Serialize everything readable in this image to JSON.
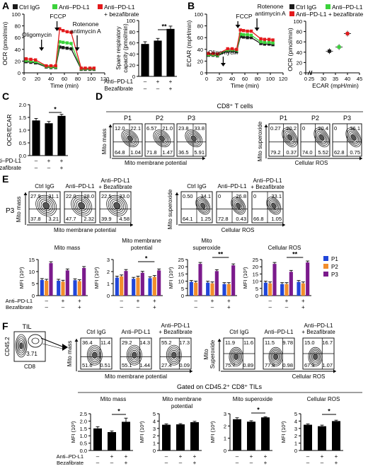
{
  "colors": {
    "black": "#1a1a1a",
    "green": "#3bd23b",
    "red": "#e31a1c",
    "blue": "#2146d9",
    "orange": "#f28e2c",
    "purple": "#7b1a8c",
    "gray_bar": "#8c8c8c"
  },
  "panels": {
    "A": "A",
    "B": "B",
    "C": "C",
    "D": "D",
    "E": "E",
    "F": "F"
  },
  "legend_AB": [
    "Ctrl IgG",
    "Anti–PD-L1",
    "Anti–PD-L1 + bezafibrate"
  ],
  "treat_short": [
    "Ctrl IgG",
    "Anti–PD-L1",
    "Anti–PD-L1 + Bezafibrate"
  ],
  "treat_labels": {
    "anti": "Anti–PD-L1",
    "beza": "Bezafibrate",
    "signs_anti": [
      "–",
      "+",
      "+"
    ],
    "signs_beza": [
      "–",
      "–",
      "+"
    ]
  },
  "sig": {
    "two": "**",
    "one": "*"
  },
  "A": {
    "ylabel": "OCR (pmol/min)",
    "xlabel": "Time (min)",
    "yticks": [
      "0",
      "20",
      "40",
      "60",
      "80",
      "100"
    ],
    "xticks": [
      "0",
      "20",
      "40",
      "60",
      "80",
      "100",
      "120"
    ],
    "ann": [
      "Oligomycin",
      "FCCP",
      "Rotenone",
      "antimycin A"
    ]
  },
  "A2": {
    "ylabel": [
      "Spare respiratory",
      "capacity (pmol/min)"
    ],
    "yticks": [
      "0",
      "20",
      "40",
      "60",
      "80",
      "100"
    ]
  },
  "B": {
    "ylabel": "ECAR (mpH/min)",
    "xlabel": "Time (min)",
    "yticks": [
      "0",
      "20",
      "40",
      "60",
      "80",
      "100"
    ],
    "xticks": [
      "0",
      "20",
      "40",
      "60",
      "80",
      "100",
      "120"
    ],
    "ann": [
      "FCCP",
      "Rotenone",
      "antimycin A",
      "Oligomycin"
    ]
  },
  "B2": {
    "ylabel": "OCR (pmol/min)",
    "xlabel": "ECAR (mpH/min)",
    "yticks": [
      "0",
      "20",
      "40",
      "60",
      "80",
      "100"
    ],
    "xticks": [
      "0",
      "25",
      "30",
      "35",
      "40",
      "45"
    ]
  },
  "C": {
    "ylabel": "OCR/ECAR",
    "yticks": [
      "0.0",
      "0.5",
      "1.0",
      "1.5",
      "2.0"
    ]
  },
  "D": {
    "title": "CD8⁺ T cells",
    "pops": [
      "P1",
      "P2",
      "P3"
    ],
    "xlab1": "Mito membrane potential",
    "ylab1": "Mito mass",
    "xlab2": "Cellular  ROS",
    "ylab2": "Mito superoxide",
    "q1": [
      [
        "12.0",
        "22.1",
        "64.8",
        "1.04"
      ],
      [
        "6.57",
        "21.0",
        "71.8",
        "1.47"
      ],
      [
        "23.8",
        "33.8",
        "36.5",
        "5.91"
      ]
    ],
    "q2": [
      [
        "0.27",
        "20.2",
        "79.2",
        "0.37"
      ],
      [
        "0",
        "20.4",
        "74.0",
        "5.52"
      ],
      [
        "0",
        "36.1",
        "62.8",
        "0.75"
      ]
    ]
  },
  "E": {
    "row": "P3",
    "xlab1": "Mito membrane potential",
    "ylab1": "Mito mass",
    "xlab2": "Cellular ROS",
    "ylab2": "Mito superoxide",
    "q1": [
      [
        "27.9",
        "31.1",
        "37.8",
        "3.21"
      ],
      [
        "22.0",
        "28.0",
        "47.7",
        "2.32"
      ],
      [
        "22.5",
        "33.0",
        "39.9",
        "4.58"
      ]
    ],
    "q2": [
      [
        "0.50",
        "34.1",
        "64.1",
        "1.25"
      ],
      [
        "0",
        "26.8",
        "72.8",
        "0.43"
      ],
      [
        "0",
        "33.1",
        "66.8",
        "1.05"
      ]
    ],
    "bar_titles": [
      [
        "Mito mass"
      ],
      [
        "Mito membrane",
        "potential"
      ],
      [
        "Mito",
        "superoxide"
      ],
      [
        "Cellular ROS"
      ]
    ],
    "ylabel": "MFI (10³)",
    "legend": [
      "P1",
      "P2",
      "P3"
    ]
  },
  "F": {
    "til": "TIL",
    "cd45": "CD45.2",
    "cd8": "CD8",
    "gate_val": "3.71",
    "xlab1": "Mito membrane potential",
    "ylab1": "Mito mass",
    "xlab2": "Cellular  ROS",
    "ylab2": [
      "Mito",
      "Superoxide"
    ],
    "q1": [
      [
        "36.4",
        "11.4",
        "51.6",
        "0.51"
      ],
      [
        "29.2",
        "14.3",
        "55.1",
        "1.44"
      ],
      [
        "55.2",
        "17.3",
        "27.4",
        "0.09"
      ]
    ],
    "q2": [
      [
        "11.9",
        "11.6",
        "75.7",
        "0.89"
      ],
      [
        "11.5",
        "9.78",
        "77.8",
        "0.98"
      ],
      [
        "15.0",
        "16.7",
        "67.3",
        "1.07"
      ]
    ],
    "gated": "Gated on CD45.2⁺ CD8⁺ TILs",
    "bar_titles": [
      [
        "Mito mass"
      ],
      [
        "Mito membrane",
        "potential"
      ],
      [
        "Mito superoxide"
      ],
      [
        "Cellular ROS"
      ]
    ],
    "ylabel": "MFI (10³)"
  },
  "chart_data": [
    {
      "type": "line",
      "panel": "A",
      "xlabel": "Time (min)",
      "ylabel": "OCR (pmol/min)",
      "xlim": [
        0,
        120
      ],
      "ylim": [
        0,
        100
      ],
      "x": [
        3,
        10,
        17,
        33,
        40,
        47,
        53,
        58,
        64,
        70,
        85,
        91,
        98,
        104
      ],
      "series": [
        {
          "name": "Ctrl IgG",
          "values": [
            19,
            18,
            17,
            10,
            9,
            9,
            44,
            43,
            42,
            41,
            6,
            6,
            6,
            6
          ]
        },
        {
          "name": "Anti–PD-L1",
          "values": [
            21,
            20,
            19,
            11,
            10,
            10,
            53,
            52,
            51,
            50,
            7,
            7,
            7,
            7
          ]
        },
        {
          "name": "Anti–PD-L1 + bezafibrate",
          "values": [
            24,
            23,
            22,
            12,
            12,
            12,
            75,
            72,
            70,
            69,
            8,
            8,
            8,
            8
          ]
        }
      ]
    },
    {
      "type": "bar",
      "panel": "A-right",
      "ylabel": "Spare respiratory capacity (pmol/min)",
      "ylim": [
        0,
        100
      ],
      "categories": [
        "Ctrl IgG",
        "Anti–PD-L1",
        "Anti–PD-L1 + Bezafibrate"
      ],
      "values": [
        58,
        64,
        85
      ],
      "errors": [
        4,
        4,
        5
      ]
    },
    {
      "type": "line",
      "panel": "B",
      "xlabel": "Time (min)",
      "ylabel": "ECAR (mpH/min)",
      "xlim": [
        0,
        120
      ],
      "ylim": [
        0,
        100
      ],
      "x": [
        3,
        10,
        17,
        33,
        40,
        47,
        53,
        58,
        64,
        70,
        85,
        91,
        98,
        104
      ],
      "series": [
        {
          "name": "Ctrl IgG",
          "values": [
            30,
            30,
            29,
            37,
            37,
            36,
            62,
            61,
            60,
            60,
            50,
            49,
            49,
            48
          ]
        },
        {
          "name": "Anti–PD-L1",
          "values": [
            31,
            31,
            30,
            39,
            39,
            38,
            66,
            65,
            65,
            64,
            53,
            52,
            52,
            51
          ]
        },
        {
          "name": "Anti–PD-L1 + bezafibrate",
          "values": [
            33,
            33,
            32,
            41,
            41,
            40,
            73,
            72,
            71,
            71,
            58,
            57,
            57,
            56
          ]
        }
      ]
    },
    {
      "type": "scatter",
      "panel": "B-right",
      "xlabel": "ECAR (mpH/min)",
      "ylabel": "OCR (pmol/min)",
      "xlim": [
        0,
        45
      ],
      "ylim": [
        0,
        100
      ],
      "series": [
        {
          "name": "Ctrl IgG",
          "x": [
            32.5
          ],
          "y": [
            42
          ]
        },
        {
          "name": "Anti–PD-L1",
          "x": [
            36.5
          ],
          "y": [
            50
          ]
        },
        {
          "name": "Anti–PD-L1 + bezafibrate",
          "x": [
            40
          ],
          "y": [
            76
          ]
        }
      ]
    },
    {
      "type": "bar",
      "panel": "C",
      "ylabel": "OCR/ECAR",
      "ylim": [
        0,
        2.0
      ],
      "categories": [
        "Ctrl IgG",
        "Anti–PD-L1",
        "Anti–PD-L1 + Bezafibrate"
      ],
      "values": [
        1.38,
        1.27,
        1.56
      ],
      "errors": [
        0.08,
        0.07,
        0.06
      ]
    },
    {
      "type": "bar",
      "panel": "E-1",
      "title": "Mito mass",
      "ylabel": "MFI (10³)",
      "ylim": [
        0,
        15
      ],
      "categories": [
        "Ctrl IgG",
        "Anti–PD-L1",
        "Anti–PD-L1 + Bezafibrate"
      ],
      "series": [
        {
          "name": "P1",
          "values": [
            6.5,
            6.2,
            6.4
          ]
        },
        {
          "name": "P2",
          "values": [
            6.2,
            5.8,
            6.0
          ]
        },
        {
          "name": "P3",
          "values": [
            13.5,
            10.5,
            11.5
          ]
        }
      ]
    },
    {
      "type": "bar",
      "panel": "E-2",
      "title": "Mito membrane potential",
      "ylabel": "MFI (10³)",
      "ylim": [
        0,
        3
      ],
      "categories": [
        "Ctrl IgG",
        "Anti–PD-L1",
        "Anti–PD-L1 + Bezafibrate"
      ],
      "series": [
        {
          "name": "P1",
          "values": [
            1.5,
            1.4,
            1.45
          ]
        },
        {
          "name": "P2",
          "values": [
            1.6,
            1.5,
            1.55
          ]
        },
        {
          "name": "P3",
          "values": [
            2.05,
            1.9,
            2.1
          ]
        }
      ]
    },
    {
      "type": "bar",
      "panel": "E-3",
      "title": "Mito superoxide",
      "ylabel": "MFI (10³)",
      "ylim": [
        0,
        25
      ],
      "categories": [
        "Ctrl IgG",
        "Anti–PD-L1",
        "Anti–PD-L1 + Bezafibrate"
      ],
      "series": [
        {
          "name": "P1",
          "values": [
            9.5,
            9,
            8
          ]
        },
        {
          "name": "P2",
          "values": [
            9,
            8.5,
            8
          ]
        },
        {
          "name": "P3",
          "values": [
            22,
            17,
            21
          ]
        }
      ]
    },
    {
      "type": "bar",
      "panel": "E-4",
      "title": "Cellular ROS",
      "ylabel": "MFI (10³)",
      "ylim": [
        0,
        25
      ],
      "categories": [
        "Ctrl IgG",
        "Anti–PD-L1",
        "Anti–PD-L1 + Bezafibrate"
      ],
      "series": [
        {
          "name": "P1",
          "values": [
            9,
            8,
            9.5
          ]
        },
        {
          "name": "P2",
          "values": [
            8.5,
            8,
            8.5
          ]
        },
        {
          "name": "P3",
          "values": [
            22,
            16.5,
            23
          ]
        }
      ]
    },
    {
      "type": "bar",
      "panel": "F-1",
      "title": "Mito mass",
      "ylabel": "MFI (10³)",
      "ylim": [
        0,
        2.5
      ],
      "categories": [
        "Ctrl IgG",
        "Anti–PD-L1",
        "Anti–PD-L1 + Bezafibrate"
      ],
      "values": [
        1.5,
        1.25,
        1.95
      ],
      "errors": [
        0.12,
        0.08,
        0.25
      ]
    },
    {
      "type": "bar",
      "panel": "F-2",
      "title": "Mito membrane potential",
      "ylabel": "MFI (10³)",
      "ylim": [
        0,
        5
      ],
      "categories": [
        "Ctrl IgG",
        "Anti–PD-L1",
        "Anti–PD-L1 + Bezafibrate"
      ],
      "values": [
        3.5,
        3.55,
        3.85
      ],
      "errors": [
        0.12,
        0.1,
        0.12
      ]
    },
    {
      "type": "bar",
      "panel": "F-3",
      "title": "Mito superoxide",
      "ylabel": "MFI (10³)",
      "ylim": [
        0,
        3
      ],
      "categories": [
        "Ctrl IgG",
        "Anti–PD-L1",
        "Anti–PD-L1 + Bezafibrate"
      ],
      "values": [
        2.55,
        2.35,
        2.7
      ],
      "errors": [
        0.12,
        0.08,
        0.05
      ]
    },
    {
      "type": "bar",
      "panel": "F-4",
      "title": "Cellular ROS",
      "ylabel": "MFI (10³)",
      "ylim": [
        0,
        5
      ],
      "categories": [
        "Ctrl IgG",
        "Anti–PD-L1",
        "Anti–PD-L1 + Bezafibrate"
      ],
      "values": [
        3.5,
        3.3,
        4.0
      ],
      "errors": [
        0.12,
        0.15,
        0.12
      ]
    }
  ]
}
